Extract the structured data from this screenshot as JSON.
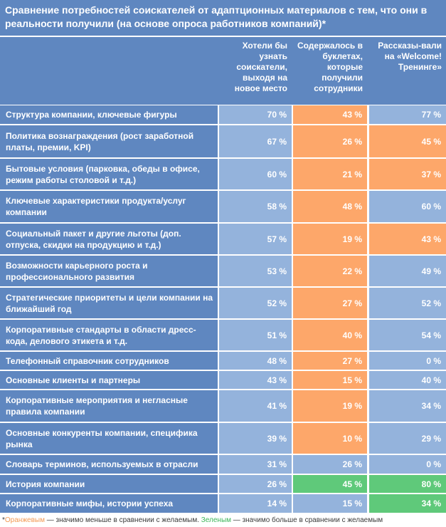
{
  "title": "Сравнение потребностей соискателей от адаптционных материалов с тем, что они в реальности получили (на основе опроса работников компаний)*",
  "headers": {
    "col1": "Хотели бы узнать соискатели, выходя на новое место",
    "col2": "Содержалось в буклетах, которые получили сотрудники",
    "col3": "Рассказы-вали на «Welcome! Тренинге»"
  },
  "colors": {
    "blue": "#94b3dc",
    "orange": "#fda76a",
    "green": "#5fc97a",
    "label_blue": "#5f87c0"
  },
  "rows": [
    {
      "label": "Структура компании, ключевые фигуры",
      "c1": "70 %",
      "c2": "43 %",
      "c3": "77 %"
    },
    {
      "label": "Политика вознаграждения (рост заработной платы, премии, KPI)",
      "c1": "67 %",
      "c2": "26 %",
      "c3": "45 %"
    },
    {
      "label": "Бытовые условия (парковка, обеды в офисе, режим работы столовой и т.д.)",
      "c1": "60 %",
      "c2": "21 %",
      "c3": "37 %"
    },
    {
      "label": "Ключевые характеристики продукта/услуг компании",
      "c1": "58 %",
      "c2": "48 %",
      "c3": "60 %"
    },
    {
      "label": "Социальный пакет и другие льготы (доп. отпуска, скидки на продукцию и т.д.)",
      "c1": "57 %",
      "c2": "19 %",
      "c3": "43 %"
    },
    {
      "label": "Возможности карьерного роста и профессионального развития",
      "c1": "53 %",
      "c2": "22 %",
      "c3": "49 %"
    },
    {
      "label": "Стратегические приоритеты и цели компании на ближайший год",
      "c1": "52 %",
      "c2": "27 %",
      "c3": "52 %"
    },
    {
      "label": "Корпоративные стандарты в области дресс-кода, делового этикета и т.д.",
      "c1": "51 %",
      "c2": "40 %",
      "c3": "54 %"
    },
    {
      "label": "Телефонный справочник сотрудников",
      "c1": "48 %",
      "c2": "27 %",
      "c3": "0 %"
    },
    {
      "label": "Основные клиенты и партнеры",
      "c1": "43 %",
      "c2": "15 %",
      "c3": "40 %"
    },
    {
      "label": "Корпоративные мероприятия и негласные правила компании",
      "c1": "41 %",
      "c2": "19 %",
      "c3": "34 %"
    },
    {
      "label": "Основные конкуренты компании, специфика рынка",
      "c1": "39 %",
      "c2": "10 %",
      "c3": "29 %"
    },
    {
      "label": "Словарь терминов, используемых в отрасли",
      "c1": "31 %",
      "c2": "26 %",
      "c3": "0 %"
    },
    {
      "label": "История компании",
      "c1": "26 %",
      "c2": "45 %",
      "c3": "80 %"
    },
    {
      "label": "Корпоративные мифы, истории успеха",
      "c1": "14 %",
      "c2": "15 %",
      "c3": "34 %"
    }
  ],
  "cell_colors": [
    [
      "blue",
      "orange",
      "blue"
    ],
    [
      "blue",
      "orange",
      "orange"
    ],
    [
      "blue",
      "orange",
      "orange"
    ],
    [
      "blue",
      "orange",
      "blue"
    ],
    [
      "blue",
      "orange",
      "orange"
    ],
    [
      "blue",
      "orange",
      "blue"
    ],
    [
      "blue",
      "orange",
      "blue"
    ],
    [
      "blue",
      "orange",
      "blue"
    ],
    [
      "blue",
      "orange",
      "blue"
    ],
    [
      "blue",
      "orange",
      "blue"
    ],
    [
      "blue",
      "orange",
      "blue"
    ],
    [
      "blue",
      "orange",
      "blue"
    ],
    [
      "blue",
      "blue",
      "blue"
    ],
    [
      "blue",
      "green",
      "green"
    ],
    [
      "blue",
      "blue",
      "green"
    ]
  ],
  "footnote": {
    "star": "*",
    "orange_word": "Оранжевым",
    "orange_text": " — значимо меньше в сравнении с желаемым. ",
    "green_word": "Зеленым",
    "green_text": " — значимо больше в сравнении с желаемым"
  }
}
